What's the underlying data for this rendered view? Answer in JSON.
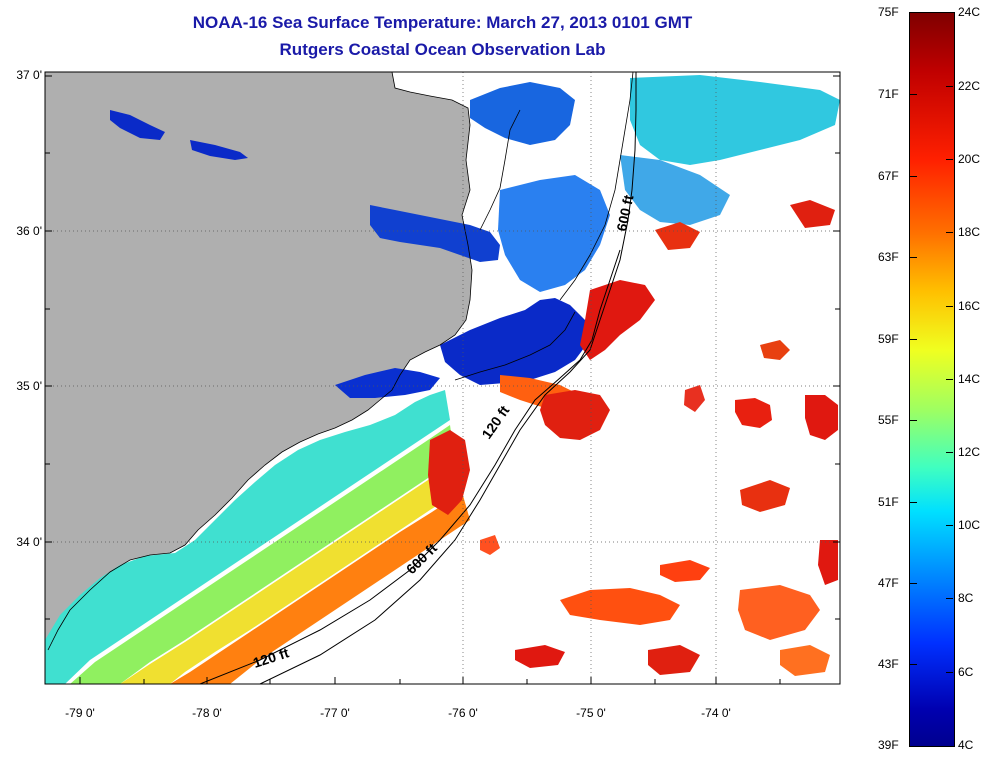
{
  "title": {
    "line1": "NOAA-16 Sea Surface Temperature:  March 27, 2013 0101 GMT",
    "line2": "Rutgers Coastal Ocean Observation Lab"
  },
  "axes": {
    "lat_labels": [
      "37 0'",
      "36 0'",
      "35 0'",
      "34 0'"
    ],
    "lon_labels": [
      "-79 0'",
      "-78 0'",
      "-77 0'",
      "-76 0'",
      "-75 0'",
      "-74 0'"
    ]
  },
  "contours": {
    "label_600_north": "600 ft",
    "label_120_mid": "120 ft",
    "label_600_south": "600 ft",
    "label_120_south": "120 ft"
  },
  "colorbar": {
    "fahrenheit": [
      "75F",
      "71F",
      "67F",
      "63F",
      "59F",
      "55F",
      "51F",
      "47F",
      "43F",
      "39F"
    ],
    "celsius": [
      "24C",
      "22C",
      "20C",
      "18C",
      "16C",
      "14C",
      "12C",
      "10C",
      "8C",
      "6C",
      "4C"
    ]
  },
  "colors": {
    "land": "#afafaf",
    "cold": "#0000b0",
    "warm": "#e01000",
    "title": "#1a1aa8"
  }
}
